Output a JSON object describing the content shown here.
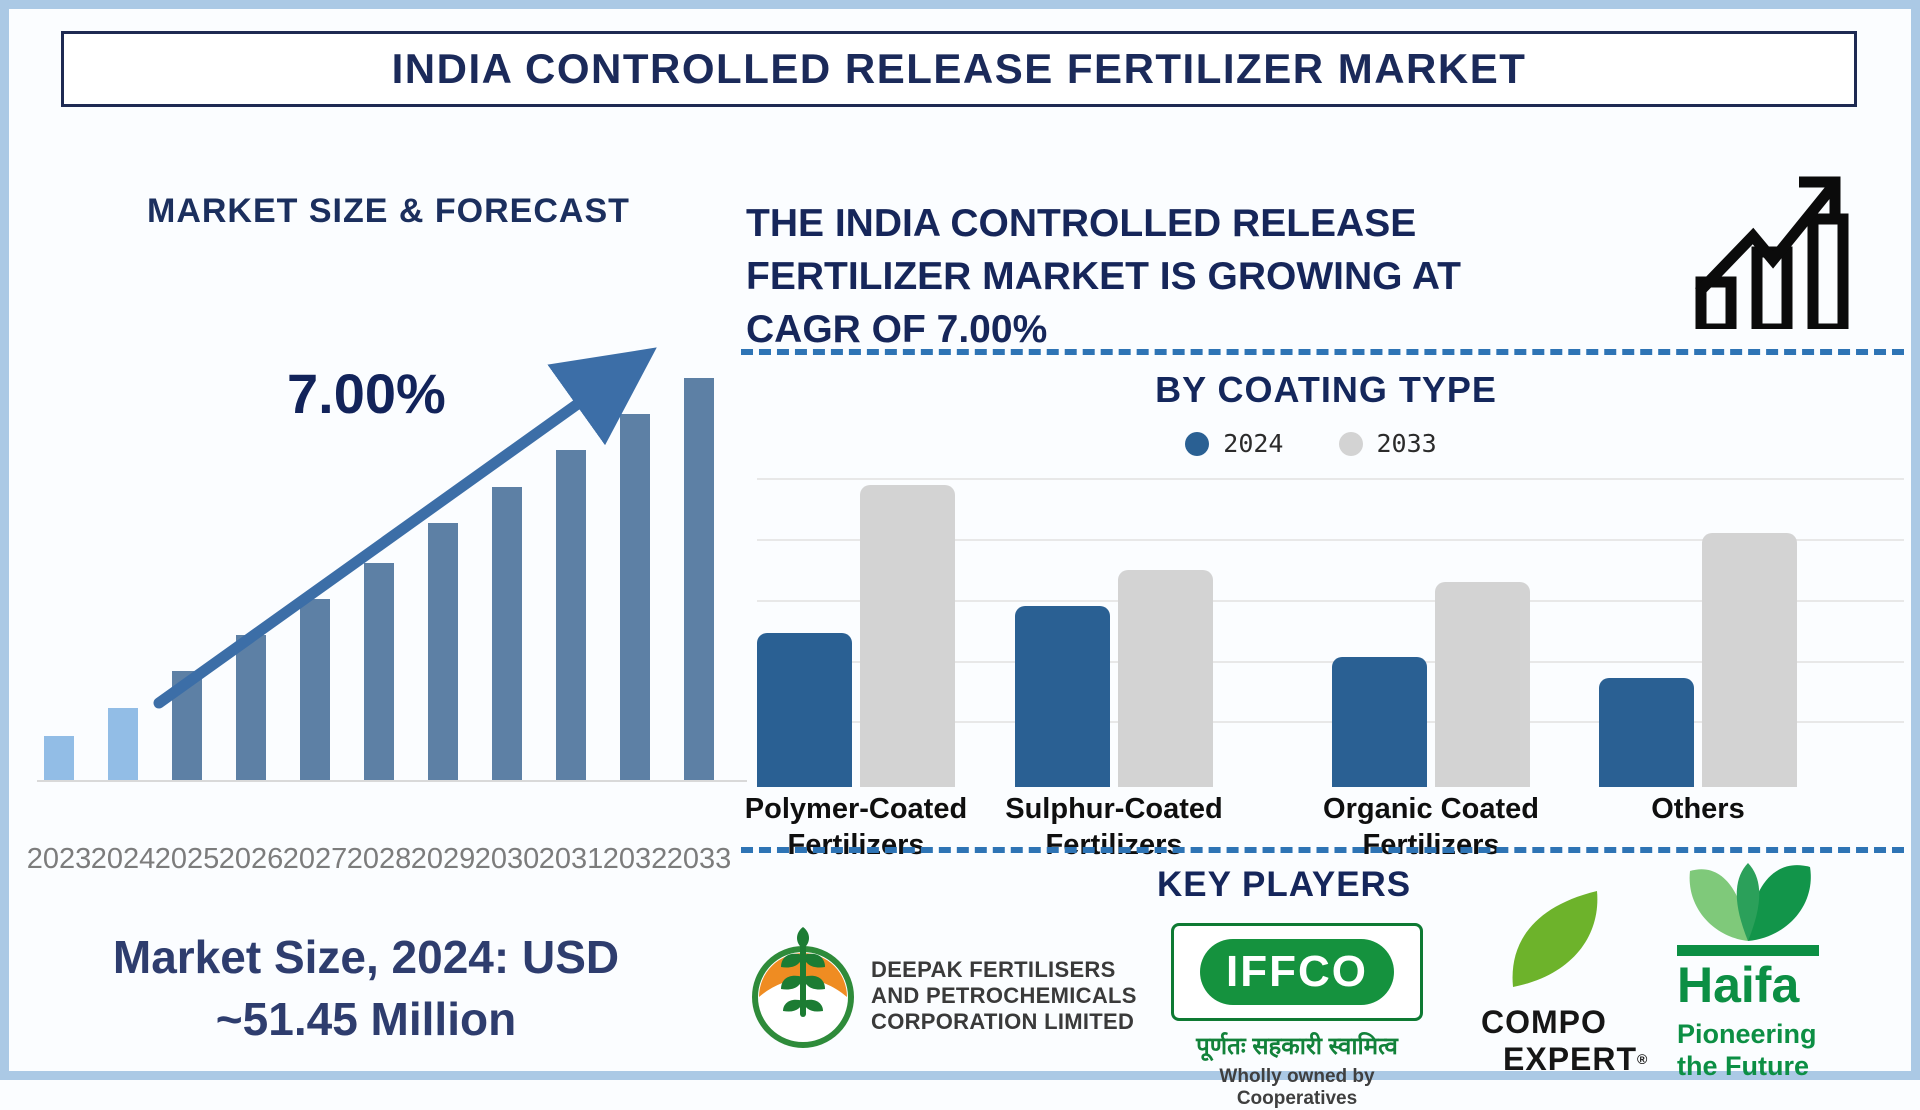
{
  "title": "INDIA CONTROLLED RELEASE FERTILIZER MARKET",
  "left_panel": {
    "heading": "MARKET SIZE & FORECAST",
    "cagr_label": "7.00%",
    "market_size_line1": "Market Size, 2024: USD",
    "market_size_line2": "~51.45 Million"
  },
  "right_panel": {
    "heading_line1": "THE INDIA CONTROLLED RELEASE",
    "heading_line2": "FERTILIZER MARKET IS GROWING AT",
    "heading_line3": "CAGR OF 7.00%",
    "chart_title": "BY COATING TYPE"
  },
  "key_players": {
    "heading": "KEY PLAYERS",
    "deepak": {
      "name_line1": "DEEPAK FERTILISERS",
      "name_line2": "AND PETROCHEMICALS",
      "name_line3": "CORPORATION LIMITED"
    },
    "iffco": {
      "wordmark": "IFFCO",
      "hindi_tagline": "पूर्णतः सहकारी स्वामित्व",
      "tagline": "Wholly owned by Cooperatives"
    },
    "compo": {
      "line1": "COMPO",
      "line2": "EXPERT",
      "registered": "®"
    },
    "haifa": {
      "wordmark": "Haifa",
      "tagline_line1": "Pioneering",
      "tagline_line2": "the Future"
    }
  },
  "chart_data": [
    {
      "type": "bar",
      "title": "MARKET SIZE & FORECAST",
      "categories": [
        "2023",
        "2024",
        "2025",
        "2026",
        "2027",
        "2028",
        "2029",
        "2030",
        "2031",
        "2032",
        "2033"
      ],
      "values": [
        11,
        18,
        27,
        36,
        45,
        54,
        64,
        73,
        82,
        91,
        100
      ],
      "units": "relative bar height, no value axis shown (index, 2033 = 100)",
      "annotation": "7.00%",
      "known_point": "2024 = USD ~51.45 Million",
      "highlight_first_n": 2,
      "highlight_color": "#92bde6",
      "bar_color": "#5d80a5",
      "ylim": [
        0,
        100
      ],
      "grid": false,
      "xlabel": "",
      "ylabel": ""
    },
    {
      "type": "bar",
      "title": "BY COATING TYPE",
      "categories": [
        [
          "Polymer-Coated",
          "Fertilizers"
        ],
        [
          "Sulphur-Coated",
          "Fertilizers"
        ],
        [
          "Organic Coated",
          "Fertilizers"
        ],
        [
          "Others"
        ]
      ],
      "series": [
        {
          "name": "2024",
          "color": "#2a6093",
          "values": [
            51,
            60,
            43,
            36
          ]
        },
        {
          "name": "2033",
          "color": "#d3d3d3",
          "values": [
            100,
            72,
            68,
            84
          ]
        }
      ],
      "units": "relative bar height, no value axis shown (index, Polymer 2033 = 100)",
      "legend_position": "top",
      "grid": true,
      "ylim": [
        0,
        100
      ]
    }
  ],
  "colors": {
    "navy_text": "#1b2a5a",
    "steel_blue_bar": "#5d80a5",
    "light_blue_bar": "#92bde6",
    "arrow_blue": "#3c6ea7",
    "grouped_blue": "#2a6093",
    "grouped_gray": "#d3d3d3",
    "dashed_line": "#2e74b5",
    "frame_border": "#abc9e5",
    "year_label_gray": "#7c7c7c",
    "iffco_green": "#15923e",
    "compo_green": "#6db32b",
    "haifa_green": "#0c8f44",
    "deepak_orange": "#ef8c22"
  }
}
